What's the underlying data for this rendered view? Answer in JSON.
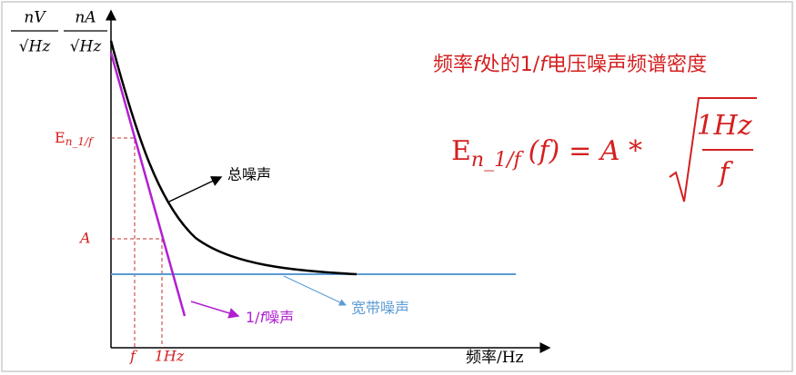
{
  "units": [
    {
      "num": "nV",
      "den": "√Hz"
    },
    {
      "num": "nA",
      "den": "√Hz"
    }
  ],
  "title": [
    "频率",
    "f",
    "处的1/",
    "f",
    "电压噪声频谱密度"
  ],
  "formula": {
    "base": "E",
    "sub": "n_1/f",
    "arg": "(f)",
    "eq": "= A *",
    "numerator": "1Hz",
    "denominator": "f"
  },
  "y_marks": {
    "base": "E",
    "sub": "n_1/f",
    "a": "A"
  },
  "x_marks": [
    "f",
    "1Hz"
  ],
  "x_label": [
    "频率",
    "/Hz"
  ],
  "curves": {
    "total": "总噪声",
    "one_over_f": [
      "1/",
      "f",
      "噪声"
    ],
    "wideband": "宽带噪声"
  }
}
